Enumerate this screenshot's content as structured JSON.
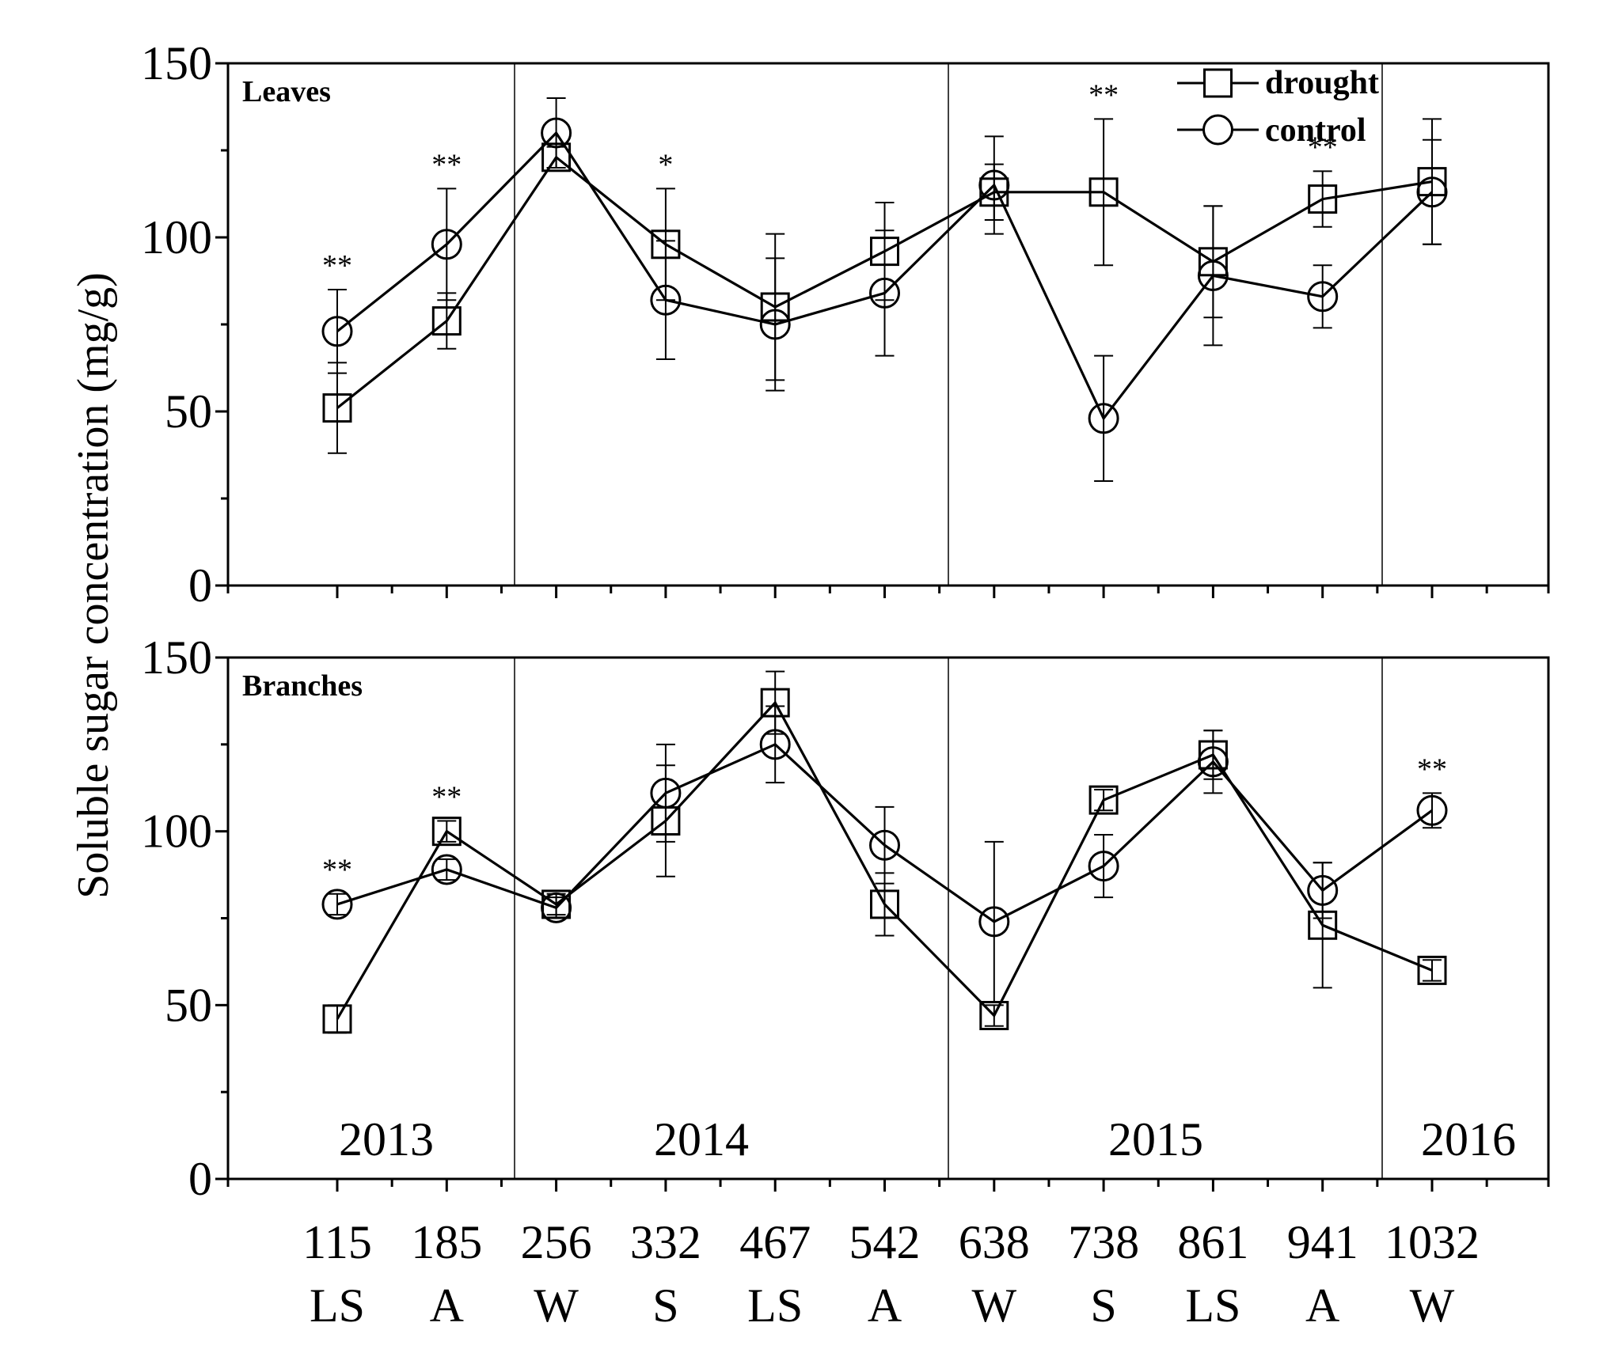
{
  "chart_data": {
    "type": "line",
    "ylabel": "Soluble sugar concentration (mg/g)",
    "ylim": [
      0,
      150
    ],
    "yticks": [
      "0",
      "50",
      "100",
      "150"
    ],
    "x_labels": [
      "115",
      "185",
      "256",
      "332",
      "467",
      "542",
      "638",
      "738",
      "861",
      "941",
      "1032"
    ],
    "season_labels": [
      "LS",
      "A",
      "W",
      "S",
      "LS",
      "A",
      "W",
      "S",
      "LS",
      "A",
      "W"
    ],
    "years": [
      "2013",
      "2014",
      "2015",
      "2016"
    ],
    "legend": {
      "drought": "drought",
      "control": "control"
    },
    "panels": [
      {
        "title": "Leaves",
        "series": [
          {
            "name": "drought",
            "marker": "square",
            "values": [
              51,
              76,
              123,
              98,
              80,
              96,
              113,
              113,
              93,
              111,
              116
            ],
            "err": [
              13,
              8,
              3,
              16,
              21,
              14,
              8,
              21,
              16,
              8,
              18
            ]
          },
          {
            "name": "control",
            "marker": "circle",
            "values": [
              73,
              98,
              130,
              82,
              75,
              84,
              115,
              48,
              89,
              83,
              113
            ],
            "err": [
              12,
              16,
              10,
              17,
              19,
              18,
              14,
              18,
              20,
              9,
              15
            ]
          }
        ],
        "significance": [
          "**",
          "**",
          "",
          "*",
          "",
          "",
          "",
          "**",
          "",
          "**",
          ""
        ]
      },
      {
        "title": "Branches",
        "series": [
          {
            "name": "drought",
            "marker": "square",
            "values": [
              46,
              100,
              79,
              103,
              137,
              79,
              47,
              109,
              122,
              73,
              60
            ],
            "err": [
              4,
              3,
              3,
              16,
              9,
              9,
              3,
              3,
              7,
              18,
              3
            ]
          },
          {
            "name": "control",
            "marker": "circle",
            "values": [
              79,
              89,
              78,
              111,
              125,
              96,
              74,
              90,
              120,
              83,
              106
            ],
            "err": [
              3,
              3,
              3,
              14,
              11,
              11,
              23,
              9,
              9,
              8,
              5
            ]
          }
        ],
        "significance": [
          "**",
          "**",
          "",
          "",
          "",
          "",
          "",
          "",
          "",
          "",
          "**"
        ]
      }
    ]
  }
}
